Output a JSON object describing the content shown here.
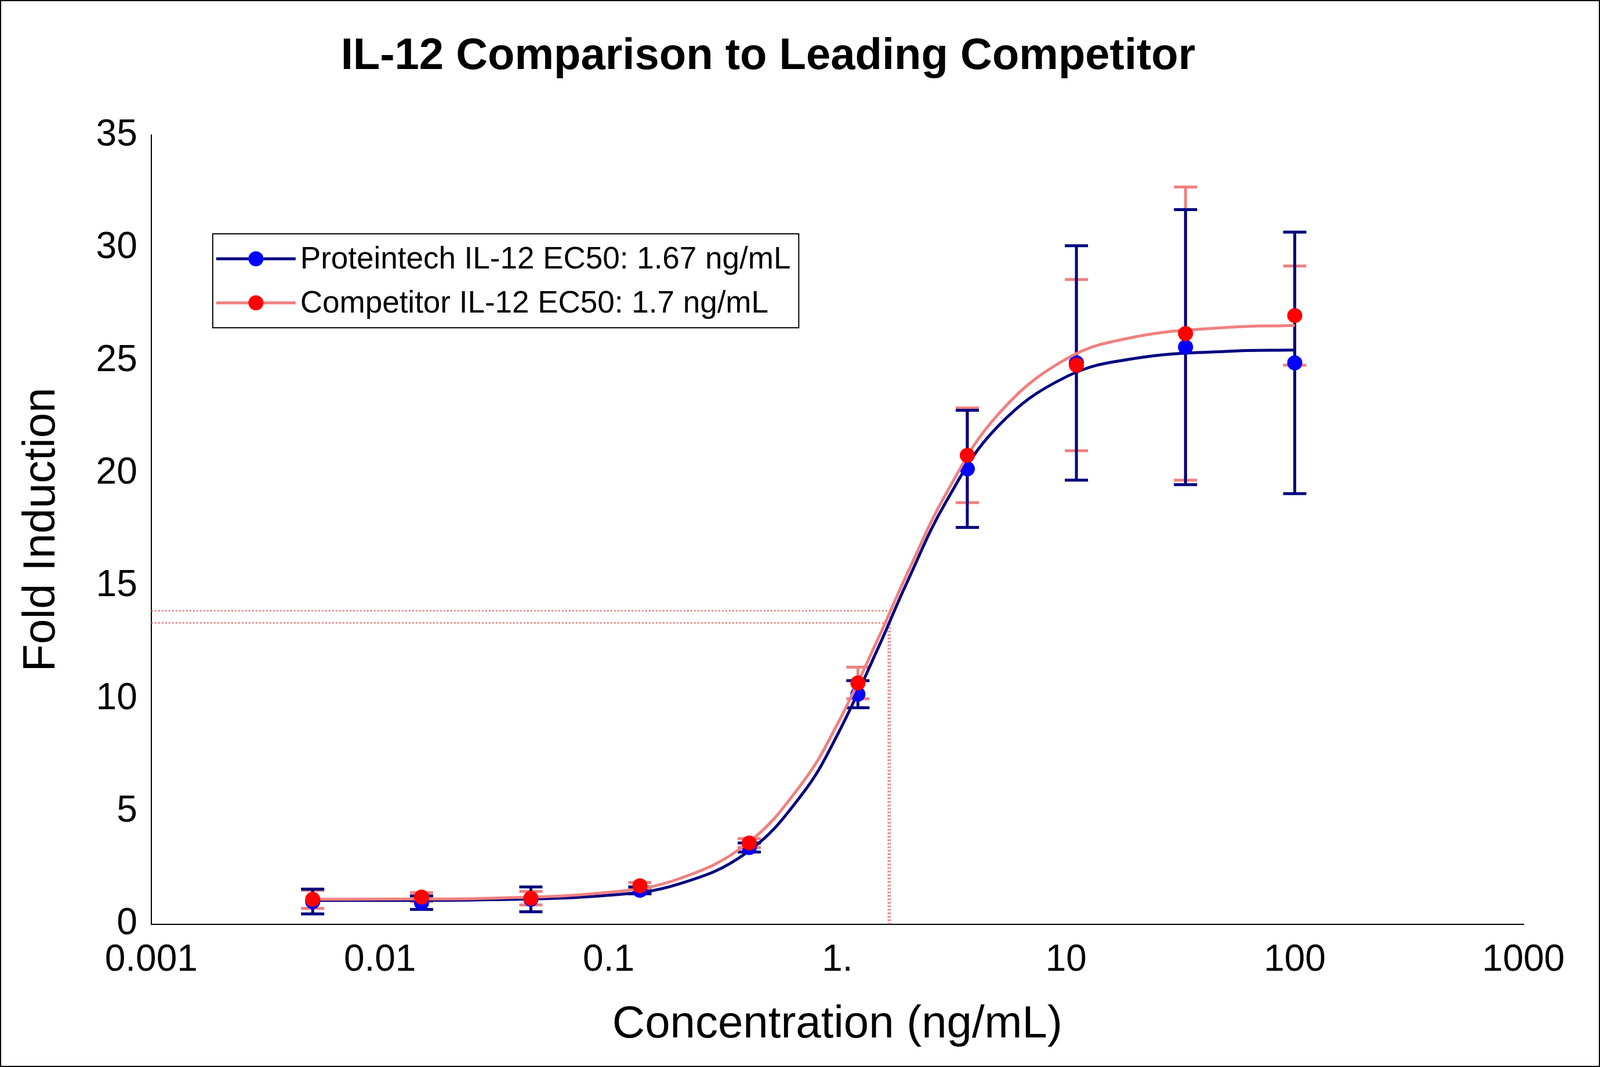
{
  "chart_data": {
    "type": "scatter",
    "title": "IL-12 Comparison to Leading Competitor",
    "x_label": "Concentration (ng/mL)",
    "y_label": "Fold Induction",
    "log": "x",
    "grid": false,
    "legend": "upper left",
    "xlim": [
      0.001,
      1000
    ],
    "xticks": [
      0.001,
      0.01,
      0.1,
      {
        "value": 1,
        "label": "1."
      },
      10,
      100,
      1000
    ],
    "ylim": [
      0,
      35
    ],
    "yticks": [
      0,
      5,
      10,
      15,
      20,
      25,
      30,
      35
    ],
    "x": [
      0.00508,
      0.0152,
      0.0457,
      0.137,
      0.412,
      1.23,
      3.7,
      11.1,
      33.3,
      100
    ],
    "series": [
      {
        "name": "Proteintech IL-12 EC50: 1.67 ng/mL",
        "color": "#0000ff",
        "marker": "circle",
        "values": [
          1.0,
          0.95,
          1.1,
          1.5,
          3.4,
          10.2,
          20.2,
          24.9,
          25.6,
          24.9
        ],
        "errors": [
          0.55,
          0.3,
          0.55,
          0.15,
          0.2,
          0.6,
          2.6,
          5.2,
          6.1,
          5.8
        ],
        "ec50": 1.67,
        "ec50_y": 13.36,
        "curve": {
          "color": "#00007f",
          "x": [
            0.005,
            0.01,
            0.03,
            0.1,
            0.2,
            0.4,
            0.7,
            1,
            1.5,
            2,
            3,
            5,
            10,
            20,
            50,
            100
          ],
          "y": [
            1.05,
            1.05,
            1.08,
            1.28,
            1.76,
            3.16,
            5.75,
            8.39,
            12.2,
            15.08,
            18.77,
            22.05,
            24.28,
            25.1,
            25.41,
            25.47
          ]
        }
      },
      {
        "name": "Competitor IL-12 EC50: 1.7 ng/mL",
        "color": "#ff0000",
        "marker": "circle",
        "values": [
          1.1,
          1.2,
          1.15,
          1.7,
          3.6,
          10.7,
          20.8,
          24.8,
          26.2,
          27.0
        ],
        "errors": [
          0.4,
          0.2,
          0.3,
          0.15,
          0.2,
          0.7,
          2.1,
          3.8,
          6.5,
          2.2
        ],
        "ec50": 1.7,
        "ec50_y": 13.9,
        "curve": {
          "color": "#f08080",
          "x": [
            0.005,
            0.01,
            0.03,
            0.1,
            0.2,
            0.4,
            0.7,
            1,
            1.5,
            2,
            3,
            5,
            10,
            20,
            50,
            100
          ],
          "y": [
            1.1,
            1.11,
            1.15,
            1.41,
            1.99,
            3.55,
            6.24,
            8.87,
            12.62,
            15.45,
            19.13,
            22.57,
            25.07,
            26.05,
            26.47,
            26.56
          ]
        }
      }
    ]
  }
}
